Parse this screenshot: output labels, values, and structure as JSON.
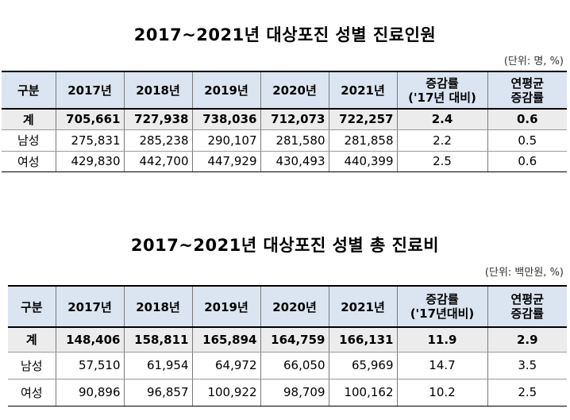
{
  "table1": {
    "title": "2017~2021년 대상포진 성별 진료인원",
    "unit": "(단위: 명, %)",
    "headers": [
      "구분",
      "2017년",
      "2018년",
      "2019년",
      "2020년",
      "2021년",
      "증감률\n('17년 대비)",
      "연평균\n증감률"
    ],
    "rows": [
      {
        "label": "계",
        "values": [
          "705,661",
          "727,938",
          "738,036",
          "712,073",
          "722,257"
        ],
        "rate": "2.4",
        "avg": "0.6"
      },
      {
        "label": "남성",
        "values": [
          "275,831",
          "285,238",
          "290,107",
          "281,580",
          "281,858"
        ],
        "rate": "2.2",
        "avg": "0.5"
      },
      {
        "label": "여성",
        "values": [
          "429,830",
          "442,700",
          "447,929",
          "430,493",
          "440,399"
        ],
        "rate": "2.5",
        "avg": "0.6"
      }
    ]
  },
  "table2": {
    "title": "2017~2021년 대상포진 성별 총 진료비",
    "unit": "(단위: 백만원, %)",
    "headers": [
      "구분",
      "2017년",
      "2018년",
      "2019년",
      "2020년",
      "2021년",
      "증감률\n('17년대비)",
      "연평균\n증감률"
    ],
    "rows": [
      {
        "label": "계",
        "values": [
          "148,406",
          "158,811",
          "165,894",
          "164,759",
          "166,131"
        ],
        "rate": "11.9",
        "avg": "2.9"
      },
      {
        "label": "남성",
        "values": [
          "57,510",
          "61,954",
          "64,972",
          "66,050",
          "65,969"
        ],
        "rate": "14.7",
        "avg": "3.5"
      },
      {
        "label": "여성",
        "values": [
          "90,896",
          "96,857",
          "100,922",
          "98,709",
          "100,162"
        ],
        "rate": "10.2",
        "avg": "2.5"
      }
    ]
  }
}
